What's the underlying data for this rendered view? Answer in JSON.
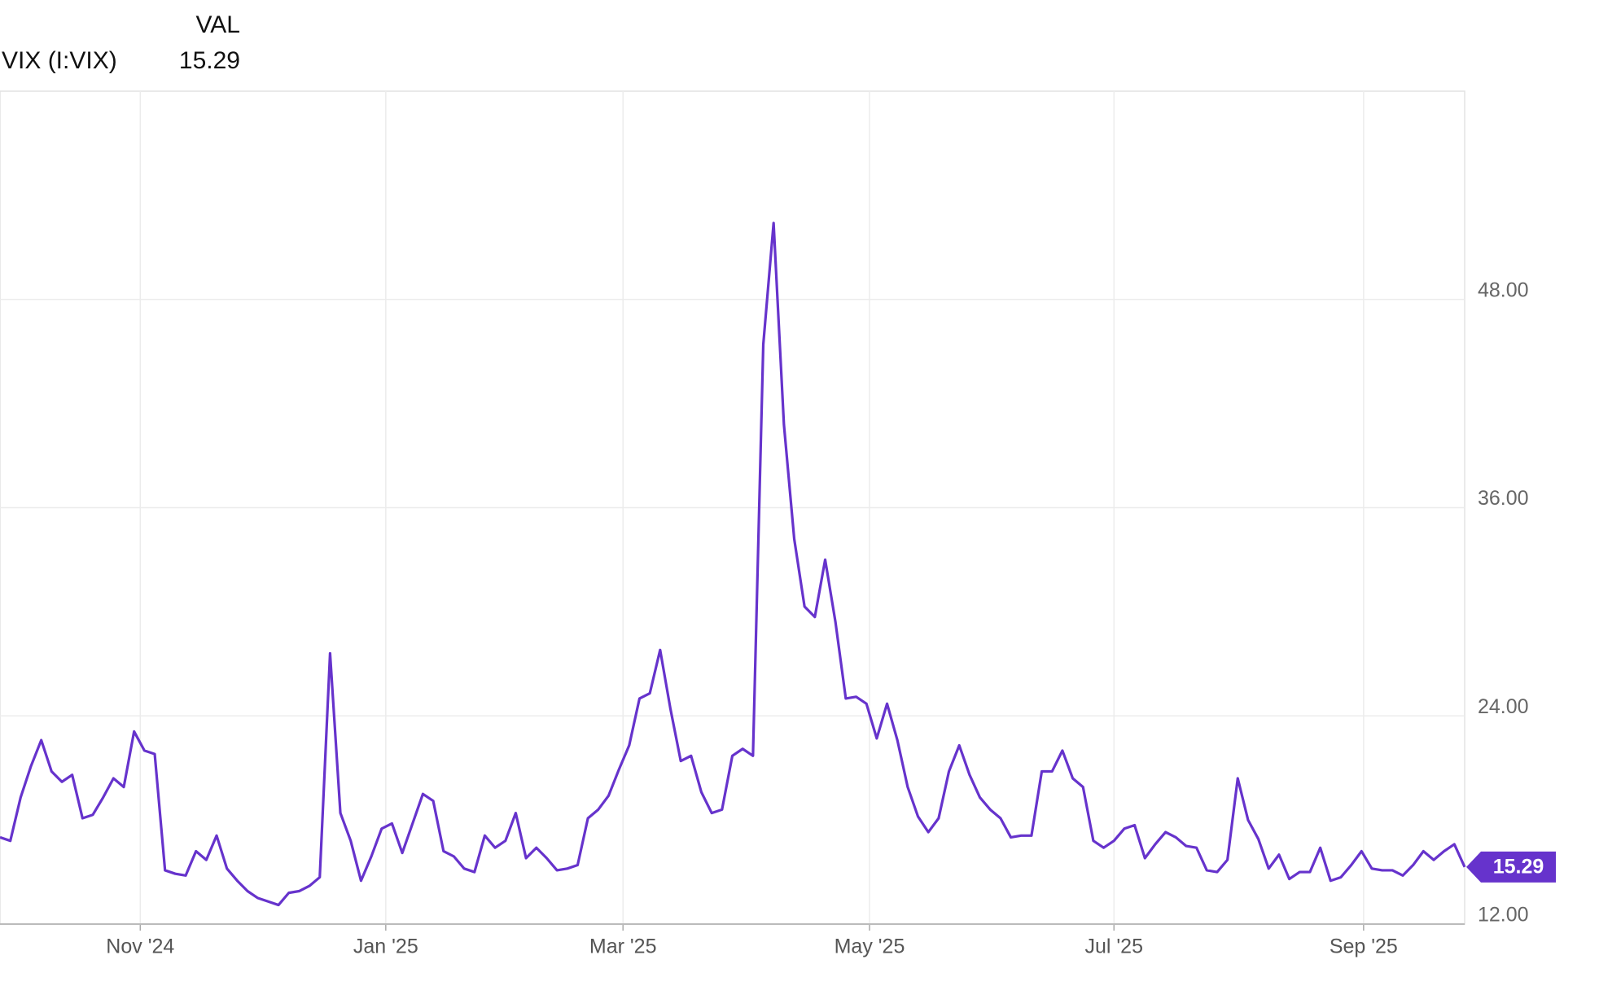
{
  "chart_data": {
    "type": "line",
    "legend_header": "VAL",
    "categories": [
      null,
      null,
      null,
      null,
      null,
      null,
      null,
      null,
      null,
      null,
      null,
      null,
      null,
      null,
      null,
      null,
      null,
      null,
      null,
      null,
      null,
      null,
      null,
      null,
      null,
      null,
      null,
      null,
      null,
      null,
      null,
      null,
      null,
      null,
      null,
      null,
      null,
      null,
      null,
      null,
      null,
      null,
      null,
      null,
      null,
      null,
      null,
      null,
      null,
      null,
      null,
      null,
      null,
      null,
      null,
      null,
      null,
      null,
      null,
      null,
      null,
      null,
      null,
      null,
      null,
      null,
      null,
      null,
      null,
      null,
      null,
      null,
      null,
      null,
      null,
      null,
      null,
      null,
      null,
      null,
      null,
      null,
      null,
      null,
      null,
      null,
      null,
      null,
      null,
      null,
      null,
      null,
      null,
      null,
      null,
      null,
      null,
      null,
      null,
      null,
      null,
      null,
      null,
      null,
      null,
      null,
      null,
      null,
      null,
      null,
      null,
      null,
      null,
      null,
      null,
      null,
      null,
      null,
      null,
      null,
      null,
      null,
      null,
      null,
      null,
      null,
      null,
      null,
      null,
      null,
      null,
      null,
      null,
      null,
      null,
      null,
      null,
      null,
      null,
      null,
      null,
      null,
      null
    ],
    "series": [
      {
        "name": "VIX (I:VIX)",
        "color": "#6633cc",
        "values": [
          17.0,
          16.8,
          19.3,
          21.1,
          22.6,
          20.8,
          20.2,
          20.6,
          18.1,
          18.3,
          19.3,
          20.4,
          19.9,
          23.1,
          22.0,
          21.8,
          15.1,
          14.9,
          14.8,
          16.2,
          15.7,
          17.1,
          15.2,
          14.5,
          13.9,
          13.5,
          13.3,
          13.1,
          13.8,
          13.9,
          14.2,
          14.7,
          27.6,
          18.4,
          16.8,
          14.5,
          15.9,
          17.5,
          17.8,
          16.1,
          17.8,
          19.5,
          19.1,
          16.2,
          15.9,
          15.2,
          15.0,
          17.1,
          16.4,
          16.8,
          18.4,
          15.8,
          16.4,
          15.8,
          15.1,
          15.2,
          15.4,
          18.1,
          18.6,
          19.4,
          20.9,
          22.3,
          25.0,
          25.3,
          27.8,
          24.4,
          21.4,
          21.7,
          19.6,
          18.4,
          18.6,
          21.7,
          22.1,
          21.7,
          45.4,
          52.4,
          40.8,
          34.2,
          30.3,
          29.7,
          33.0,
          29.4,
          25.0,
          25.1,
          24.7,
          22.7,
          24.7,
          22.6,
          19.9,
          18.2,
          17.3,
          18.1,
          20.8,
          22.3,
          20.6,
          19.3,
          18.6,
          18.1,
          17.0,
          17.1,
          17.1,
          20.8,
          20.8,
          22.0,
          20.4,
          19.9,
          16.8,
          16.4,
          16.8,
          17.5,
          17.7,
          15.8,
          16.6,
          17.3,
          17.0,
          16.5,
          16.4,
          15.1,
          15.0,
          15.7,
          20.4,
          18.0,
          16.9,
          15.2,
          16.0,
          14.6,
          15.0,
          15.0,
          16.4,
          14.5,
          14.7,
          15.4,
          16.2,
          15.2,
          15.1,
          15.1,
          14.8,
          15.4,
          16.2,
          15.7,
          16.2,
          16.6,
          15.29
        ]
      }
    ],
    "xticks": [
      {
        "value": 13.6,
        "label": "Nov '24"
      },
      {
        "value": 37.4,
        "label": "Jan '25"
      },
      {
        "value": 60.4,
        "label": "Mar '25"
      },
      {
        "value": 84.3,
        "label": "May '25"
      },
      {
        "value": 108.0,
        "label": "Jul '25"
      },
      {
        "value": 132.2,
        "label": "Sep '25"
      }
    ],
    "ylim": [
      12,
      60
    ],
    "yticks": [
      {
        "value": 12,
        "label": "12.00"
      },
      {
        "value": 24,
        "label": "24.00"
      },
      {
        "value": 36,
        "label": "36.00"
      },
      {
        "value": 48,
        "label": "48.00"
      }
    ],
    "grid": true
  }
}
